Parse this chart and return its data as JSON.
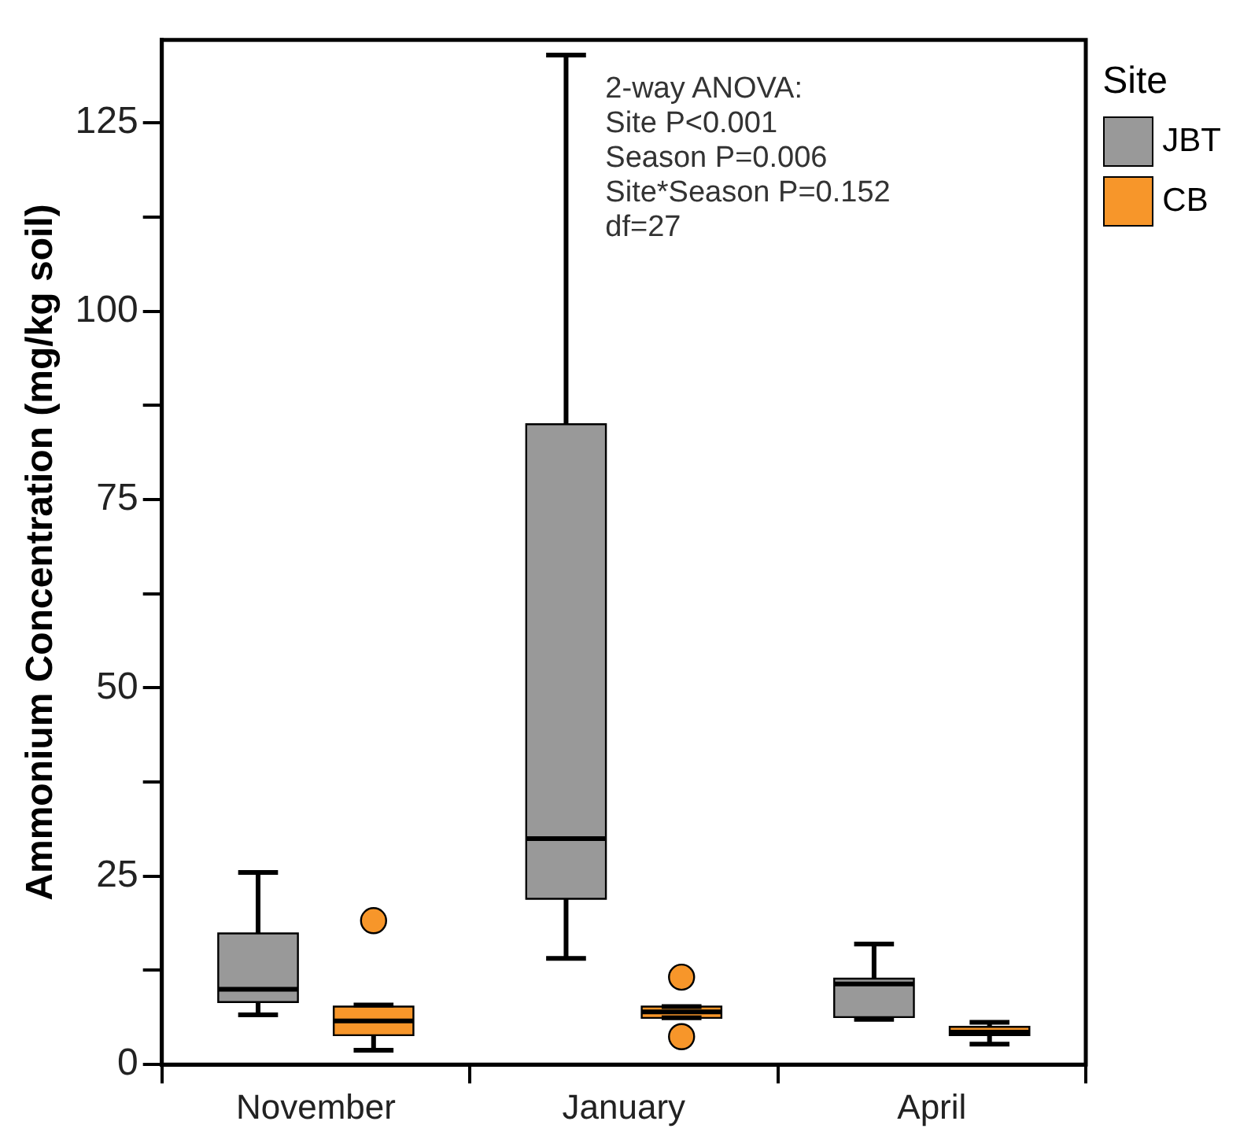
{
  "chart_data": {
    "type": "box",
    "ylabel": "Ammonium Concentration (mg/kg soil)",
    "legend_title": "Site",
    "legend": "top right",
    "grid": false,
    "categories": [
      "November",
      "January",
      "April"
    ],
    "ylim": [
      0,
      136
    ],
    "yticks": [
      0,
      {
        "value": 12.5,
        "label": null
      },
      25,
      {
        "value": 37.5,
        "label": null
      },
      50,
      {
        "value": 62.5,
        "label": null
      },
      75,
      {
        "value": 87.5,
        "label": null
      },
      100,
      {
        "value": 112.5,
        "label": null
      },
      125
    ],
    "annotations": [
      "2-way ANOVA:",
      "Site P<0.001",
      "Season P=0.006",
      "Site*Season P=0.152",
      "df=27"
    ],
    "series": [
      {
        "name": "JBT",
        "color": "#999999",
        "boxes": [
          {
            "low": 6.6,
            "q1": 8.3,
            "median": 10,
            "q3": 17.4,
            "high": 25.5
          },
          {
            "low": 14.1,
            "q1": 22,
            "median": 30,
            "q3": 85,
            "high": 134
          },
          {
            "low": 6,
            "q1": 6.3,
            "median": 10.7,
            "q3": 11.4,
            "high": 16
          }
        ]
      },
      {
        "name": "CB",
        "color": "#f7962a",
        "boxes": [
          {
            "low": 1.9,
            "q1": 3.9,
            "median": 5.8,
            "q3": 7.7,
            "high": 7.9,
            "outliers": [
              19.1
            ]
          },
          {
            "low": 6.2,
            "q1": 6.2,
            "median": 7,
            "q3": 7.7,
            "high": 7.7,
            "outliers": [
              11.6,
              3.7
            ]
          },
          {
            "low": 2.7,
            "q1": 3.9,
            "median": 4.3,
            "q3": 5,
            "high": 5.6
          }
        ]
      }
    ]
  }
}
